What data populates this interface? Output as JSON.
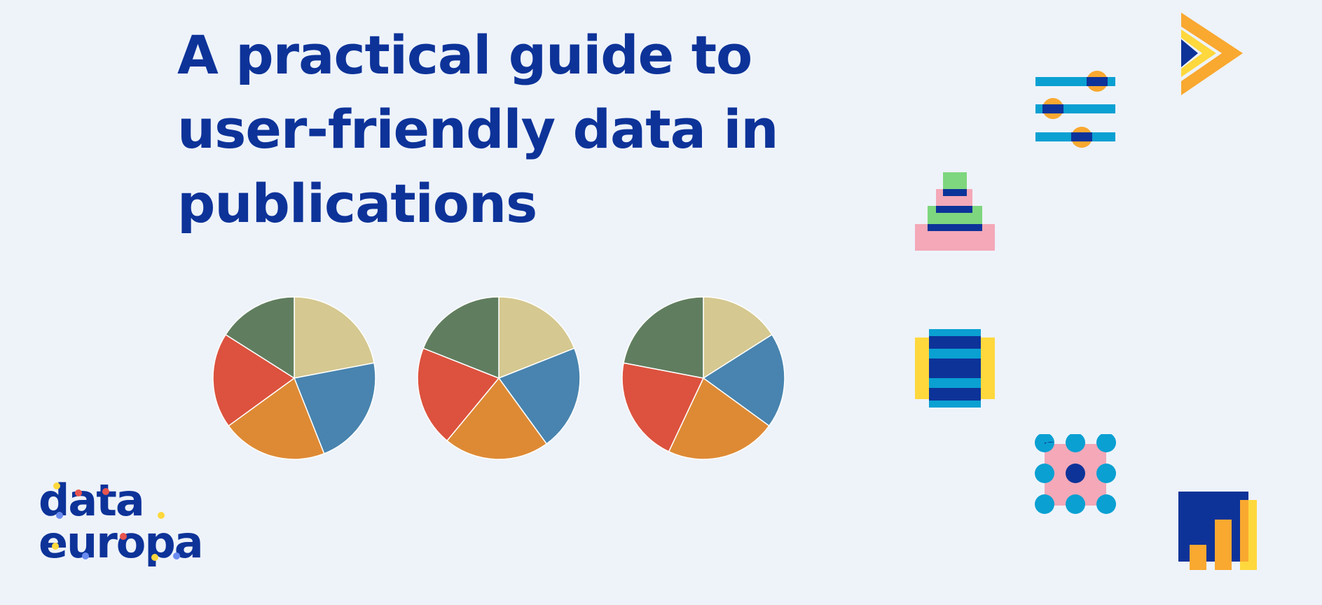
{
  "page": {
    "background": "#eef3fa",
    "title_lines": [
      "A practical guide to",
      "user-friendly data in",
      "publications"
    ]
  },
  "logo": {
    "word1": "data",
    "word2": "europa",
    "color": "#0d3399"
  },
  "colors": {
    "navy": "#0d3399",
    "teal": "#0aa0d2",
    "orange": "#f9a830",
    "yellow": "#ffd83d",
    "pink": "#f4a8b8",
    "green": "#7ed67e"
  },
  "icons": [
    "play-arrow-icon",
    "sliders-icon",
    "pyramid-icon",
    "stacked-layers-icon",
    "dot-grid-icon",
    "bar-growth-icon"
  ],
  "chart_data": [
    {
      "type": "pie",
      "labels": [
        "",
        "",
        "",
        "",
        ""
      ],
      "colors": [
        "#d5c890",
        "#4884af",
        "#de8a35",
        "#dc523e",
        "#607e5f"
      ],
      "values": [
        22,
        22,
        21,
        19,
        16
      ]
    },
    {
      "type": "pie",
      "labels": [
        "",
        "",
        "",
        "",
        ""
      ],
      "colors": [
        "#d5c890",
        "#4884af",
        "#de8a35",
        "#dc523e",
        "#607e5f"
      ],
      "values": [
        19,
        21,
        21,
        20,
        19
      ]
    },
    {
      "type": "pie",
      "labels": [
        "",
        "",
        "",
        "",
        ""
      ],
      "colors": [
        "#d5c890",
        "#4884af",
        "#de8a35",
        "#dc523e",
        "#607e5f"
      ],
      "values": [
        16,
        19,
        22,
        21,
        22
      ]
    }
  ]
}
